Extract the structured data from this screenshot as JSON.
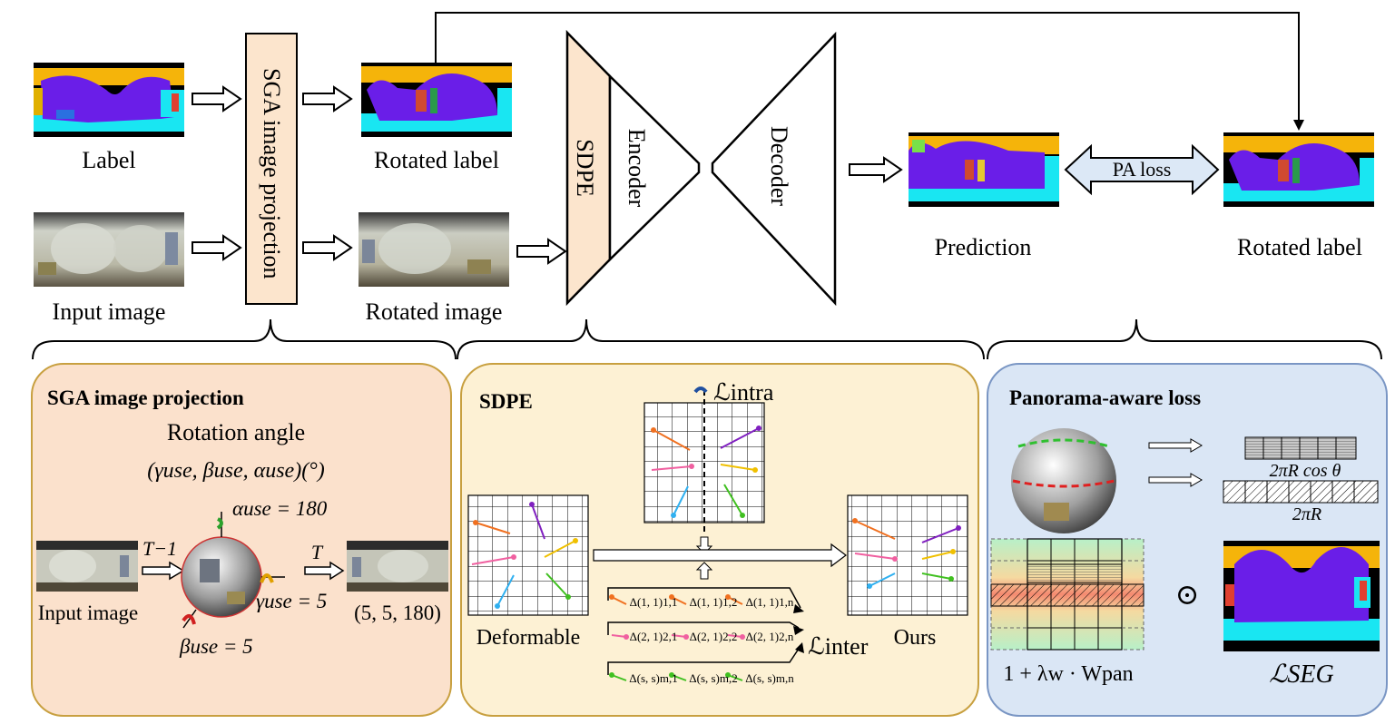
{
  "top": {
    "label": "Label",
    "input_image": "Input image",
    "sga_block": "SGA image projection",
    "rotated_label": "Rotated label",
    "rotated_image": "Rotated image",
    "sdpe": "SDPE",
    "encoder": "Encoder",
    "decoder": "Decoder",
    "prediction": "Prediction",
    "pa_loss": "PA loss",
    "rotated_label_right": "Rotated label"
  },
  "sga_panel": {
    "title": "SGA image projection",
    "rotation_angle": "Rotation angle",
    "angle_tuple": "(γuse, βuse, αuse)(°)",
    "alpha": "αuse = 180",
    "gamma": "γuse = 5",
    "beta": "βuse = 5",
    "t_inv": "T−1",
    "t": "T",
    "input_image": "Input image",
    "result": "(5, 5, 180)"
  },
  "sdpe_panel": {
    "title": "SDPE",
    "l_intra": "ℒintra",
    "l_inter": "ℒinter",
    "deformable": "Deformable",
    "ours": "Ours",
    "delta_rows": [
      [
        "Δ(1, 1)1,1",
        "Δ(1, 1)1,2",
        "Δ(1, 1)1,n"
      ],
      [
        "Δ(2, 1)2,1",
        "Δ(2, 1)2,2",
        "Δ(2, 1)2,n"
      ],
      [
        "Δ(s, s)m,1",
        "Δ(s, s)m,2",
        "Δ(s, s)m,n"
      ]
    ]
  },
  "pa_panel": {
    "title": "Panorama-aware loss",
    "cos_label": "2πR cos θ",
    "full_label": "2πR",
    "weight_label": "1 + λw · Wpan",
    "odot": "⊙",
    "l_seg": "ℒSEG"
  },
  "colors": {
    "sga_fill": "#fbe1cc",
    "sga_border": "#c8a040",
    "sdpe_fill": "#fdf1d4",
    "pa_fill": "#dae6f5",
    "pa_border": "#7a96c4",
    "block_fill": "#fce5cd",
    "encoder_fill": "#fdf1d4",
    "label_purple": "#6a1ee8",
    "label_cyan": "#19e6f2",
    "label_orange": "#f5b40a",
    "pa_arrow_fill": "#dce8f6"
  }
}
